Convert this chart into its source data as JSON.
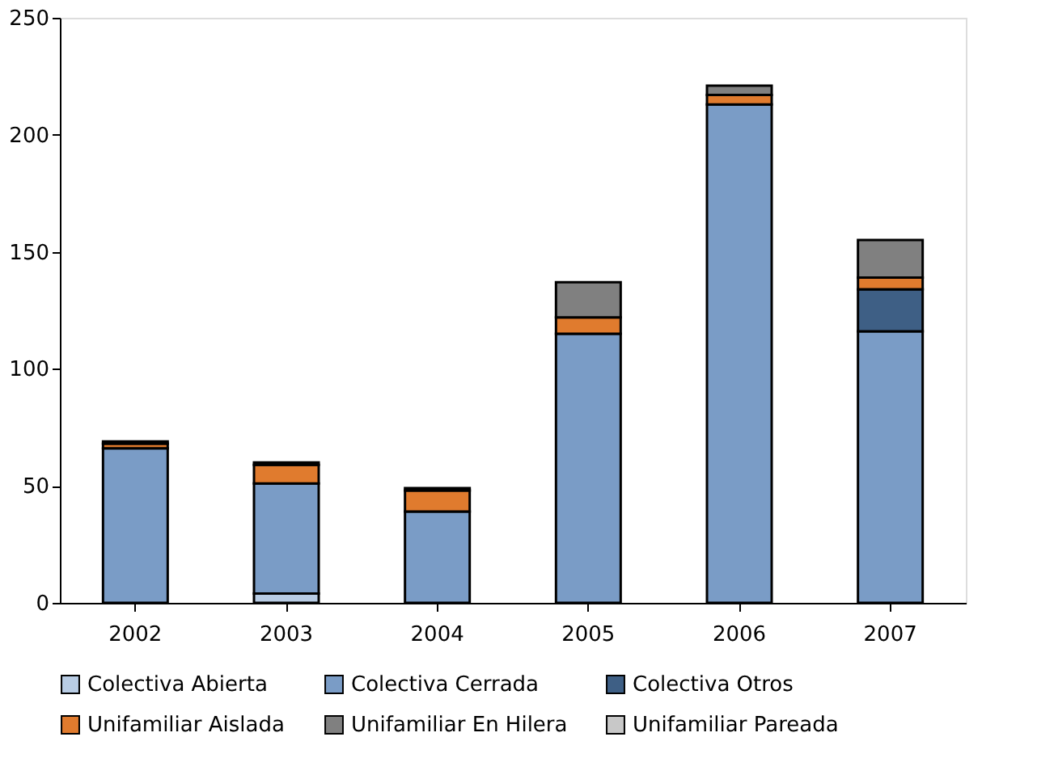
{
  "chart_data": {
    "type": "bar",
    "stacked": true,
    "categories": [
      "2002",
      "2003",
      "2004",
      "2005",
      "2006",
      "2007"
    ],
    "ylim": [
      0,
      250
    ],
    "yticks": [
      0,
      50,
      100,
      150,
      200,
      250
    ],
    "grid": false,
    "legend": "bottom",
    "series": [
      {
        "name": "Colectiva Abierta",
        "color": "#b8cce4",
        "values": [
          null,
          4,
          null,
          null,
          null,
          null
        ]
      },
      {
        "name": "Colectiva Cerrada",
        "color": "#7a9cc6",
        "values": [
          66,
          47,
          39,
          115,
          213,
          116
        ]
      },
      {
        "name": "Colectiva Otros",
        "color": "#3e5f85",
        "values": [
          null,
          null,
          null,
          null,
          null,
          18
        ]
      },
      {
        "name": "Unifamiliar  Aislada",
        "color": "#e07b2e",
        "values": [
          2,
          8,
          9,
          7,
          4,
          5
        ]
      },
      {
        "name": "Unifamiliar  En Hilera",
        "color": "#808080",
        "values": [
          1,
          1,
          1,
          15,
          4,
          16
        ]
      },
      {
        "name": "Unifamiliar  Pareada",
        "color": "#c8c8c8",
        "values": [
          null,
          null,
          null,
          null,
          null,
          null
        ]
      }
    ]
  }
}
